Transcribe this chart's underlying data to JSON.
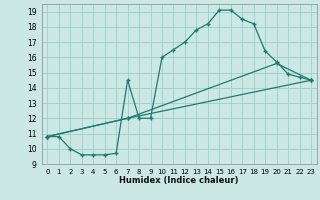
{
  "xlabel": "Humidex (Indice chaleur)",
  "bg_color": "#cce8e5",
  "grid_color": "#9dcfca",
  "line_color": "#1e7a6e",
  "xlim": [
    -0.5,
    23.5
  ],
  "ylim": [
    9,
    19.5
  ],
  "xticks": [
    0,
    1,
    2,
    3,
    4,
    5,
    6,
    7,
    8,
    9,
    10,
    11,
    12,
    13,
    14,
    15,
    16,
    17,
    18,
    19,
    20,
    21,
    22,
    23
  ],
  "yticks": [
    9,
    10,
    11,
    12,
    13,
    14,
    15,
    16,
    17,
    18,
    19
  ],
  "line1_x": [
    0,
    1,
    2,
    3,
    4,
    5,
    6,
    7,
    8,
    9,
    10,
    11,
    12,
    13,
    14,
    15,
    16,
    17,
    18,
    19,
    20,
    21,
    22,
    23
  ],
  "line1_y": [
    10.8,
    10.8,
    10.0,
    9.6,
    9.6,
    9.6,
    9.7,
    14.5,
    12.0,
    12.0,
    16.0,
    16.5,
    17.0,
    17.8,
    18.2,
    19.1,
    19.1,
    18.5,
    18.2,
    16.4,
    15.7,
    14.9,
    14.7,
    14.5
  ],
  "line2_x": [
    0,
    7,
    20,
    23
  ],
  "line2_y": [
    10.8,
    12.0,
    15.6,
    14.5
  ],
  "line3_x": [
    0,
    7,
    23
  ],
  "line3_y": [
    10.8,
    12.0,
    14.5
  ],
  "marker_style": "+",
  "marker_size": 3.5,
  "linewidth": 0.9
}
